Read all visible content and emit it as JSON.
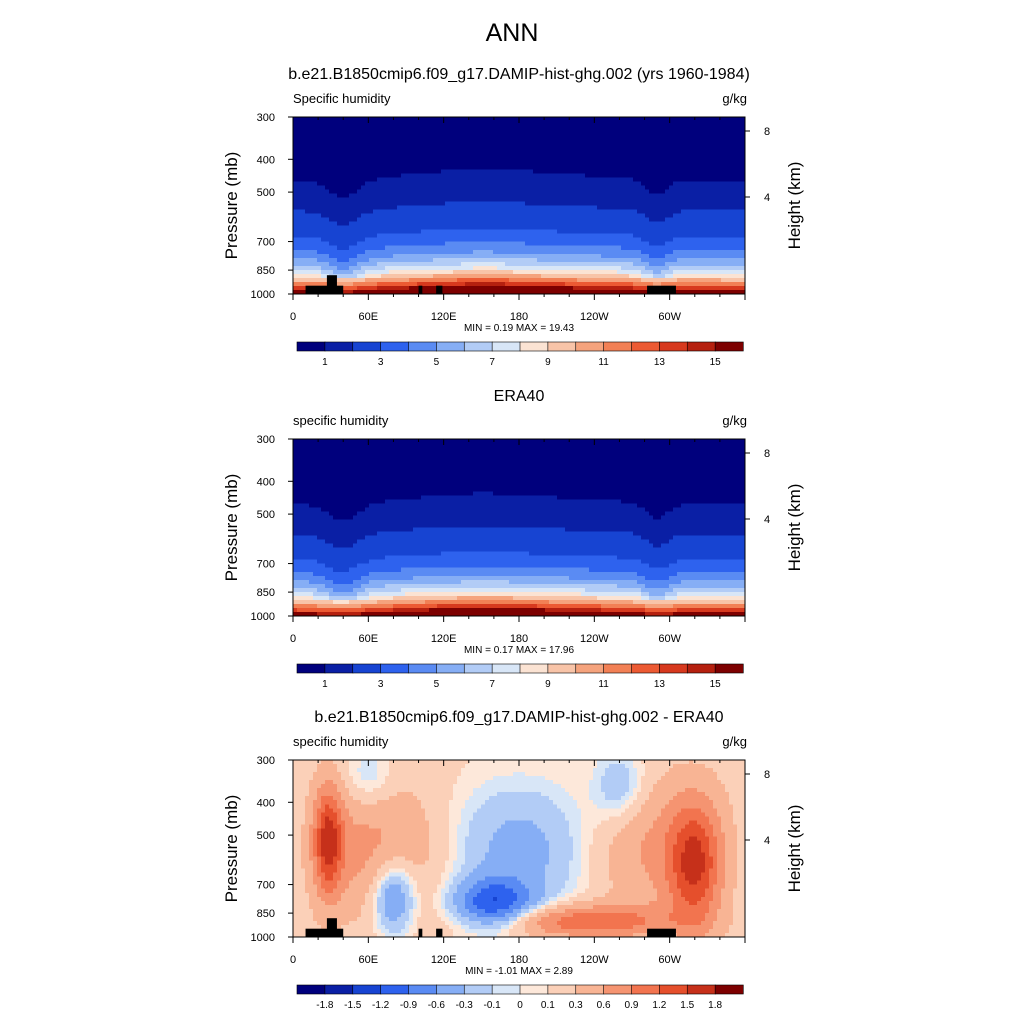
{
  "figure": {
    "title": "ANN"
  },
  "panels": [
    {
      "title": "b.e21.B1850cmip6.f09_g17.DAMIP-hist-ghg.002 (yrs 1960-1984)",
      "left_label": "Specific humidity",
      "right_label": "g/kg",
      "ylabel": "Pressure (mb)",
      "ylabel_right": "Height (km)",
      "stats": "MIN =   0.19  MAX =  19.43",
      "kind": "field",
      "topography": true
    },
    {
      "title": "ERA40",
      "left_label": "specific humidity",
      "right_label": "g/kg",
      "ylabel": "Pressure (mb)",
      "ylabel_right": "Height (km)",
      "stats": "MIN =   0.17  MAX =  17.96",
      "kind": "field",
      "topography": false
    },
    {
      "title": "b.e21.B1850cmip6.f09_g17.DAMIP-hist-ghg.002 - ERA40",
      "left_label": "specific humidity",
      "right_label": "g/kg",
      "ylabel": "Pressure (mb)",
      "ylabel_right": "Height (km)",
      "stats": "MIN =  -1.01  MAX =   2.89",
      "kind": "difference",
      "topography": true
    }
  ],
  "axes": {
    "x_ticks": [
      "0",
      "60E",
      "120E",
      "180",
      "120W",
      "60W"
    ],
    "y_ticks": [
      "300",
      "400",
      "500",
      "700",
      "850",
      "1000"
    ],
    "right_ticks": [
      "8",
      "4"
    ]
  },
  "colorbars": [
    {
      "labels": [
        "1",
        "3",
        "5",
        "7",
        "9",
        "11",
        "13",
        "15"
      ]
    },
    {
      "labels": [
        "1",
        "3",
        "5",
        "7",
        "9",
        "11",
        "13",
        "15"
      ]
    },
    {
      "labels": [
        "-1.8",
        "-1.5",
        "-1.2",
        "-0.9",
        "-0.6",
        "-0.3",
        "-0.1",
        "0",
        "0.1",
        "0.3",
        "0.6",
        "0.9",
        "1.2",
        "1.5",
        "1.8"
      ]
    }
  ],
  "colors": {
    "field_levels": [
      "#00007d",
      "#0a1fa5",
      "#1744d2",
      "#2e62ee",
      "#5a8bf3",
      "#86aef5",
      "#b2ccf6",
      "#d8e6f7",
      "#fbe3d3",
      "#f8c4a8",
      "#f5a37d",
      "#f28055",
      "#ec5a33",
      "#d7391e",
      "#b5200f",
      "#7d0000"
    ],
    "diff_levels": [
      "#00007d",
      "#0a1fa5",
      "#1744d2",
      "#2e62ee",
      "#5a8bf3",
      "#86aef5",
      "#b2ccf6",
      "#d8e6f7",
      "#fde8da",
      "#fbd0b8",
      "#f8b494",
      "#f59471",
      "#f2744f",
      "#e54f2c",
      "#c6301a",
      "#7d0000"
    ],
    "topography": "#000000"
  },
  "chart_data": [
    {
      "type": "heatmap",
      "title": "b.e21.B1850cmip6.f09_g17.DAMIP-hist-ghg.002 (yrs 1960-1984)",
      "variable": "Specific humidity",
      "units": "g/kg",
      "xlabel": "",
      "ylabel": "Pressure (mb)",
      "ylabel_right": "Height (km)",
      "xlim": [
        0,
        360
      ],
      "ylim": [
        1000,
        300
      ],
      "log_pressure": true,
      "x_ticks": [
        "0",
        "60E",
        "120E",
        "180",
        "120W",
        "60W"
      ],
      "y_ticks": [
        300,
        400,
        500,
        700,
        850,
        1000
      ],
      "right_ticks_km": [
        8,
        4
      ],
      "min": 0.19,
      "max": 19.43,
      "contour_levels": [
        0.5,
        1,
        2,
        3,
        4,
        5,
        6,
        7,
        8,
        9,
        10,
        11,
        12,
        13,
        14,
        15
      ],
      "colorbar_labels": [
        1,
        3,
        5,
        7,
        9,
        11,
        13,
        15
      ]
    },
    {
      "type": "heatmap",
      "title": "ERA40",
      "variable": "specific humidity",
      "units": "g/kg",
      "xlabel": "",
      "ylabel": "Pressure (mb)",
      "ylabel_right": "Height (km)",
      "xlim": [
        0,
        360
      ],
      "ylim": [
        1000,
        300
      ],
      "log_pressure": true,
      "x_ticks": [
        "0",
        "60E",
        "120E",
        "180",
        "120W",
        "60W"
      ],
      "y_ticks": [
        300,
        400,
        500,
        700,
        850,
        1000
      ],
      "right_ticks_km": [
        8,
        4
      ],
      "min": 0.17,
      "max": 17.96,
      "contour_levels": [
        0.5,
        1,
        2,
        3,
        4,
        5,
        6,
        7,
        8,
        9,
        10,
        11,
        12,
        13,
        14,
        15
      ],
      "colorbar_labels": [
        1,
        3,
        5,
        7,
        9,
        11,
        13,
        15
      ]
    },
    {
      "type": "heatmap",
      "title": "b.e21.B1850cmip6.f09_g17.DAMIP-hist-ghg.002 - ERA40",
      "variable": "specific humidity",
      "units": "g/kg",
      "xlabel": "",
      "ylabel": "Pressure (mb)",
      "ylabel_right": "Height (km)",
      "xlim": [
        0,
        360
      ],
      "ylim": [
        1000,
        300
      ],
      "log_pressure": true,
      "x_ticks": [
        "0",
        "60E",
        "120E",
        "180",
        "120W",
        "60W"
      ],
      "y_ticks": [
        300,
        400,
        500,
        700,
        850,
        1000
      ],
      "right_ticks_km": [
        8,
        4
      ],
      "min": -1.01,
      "max": 2.89,
      "contour_levels": [
        -1.8,
        -1.5,
        -1.2,
        -0.9,
        -0.6,
        -0.3,
        -0.1,
        0,
        0.1,
        0.3,
        0.6,
        0.9,
        1.2,
        1.5,
        1.8
      ],
      "colorbar_labels": [
        -1.8,
        -1.5,
        -1.2,
        -0.9,
        -0.6,
        -0.3,
        -0.1,
        0,
        0.1,
        0.3,
        0.6,
        0.9,
        1.2,
        1.5,
        1.8
      ]
    }
  ]
}
